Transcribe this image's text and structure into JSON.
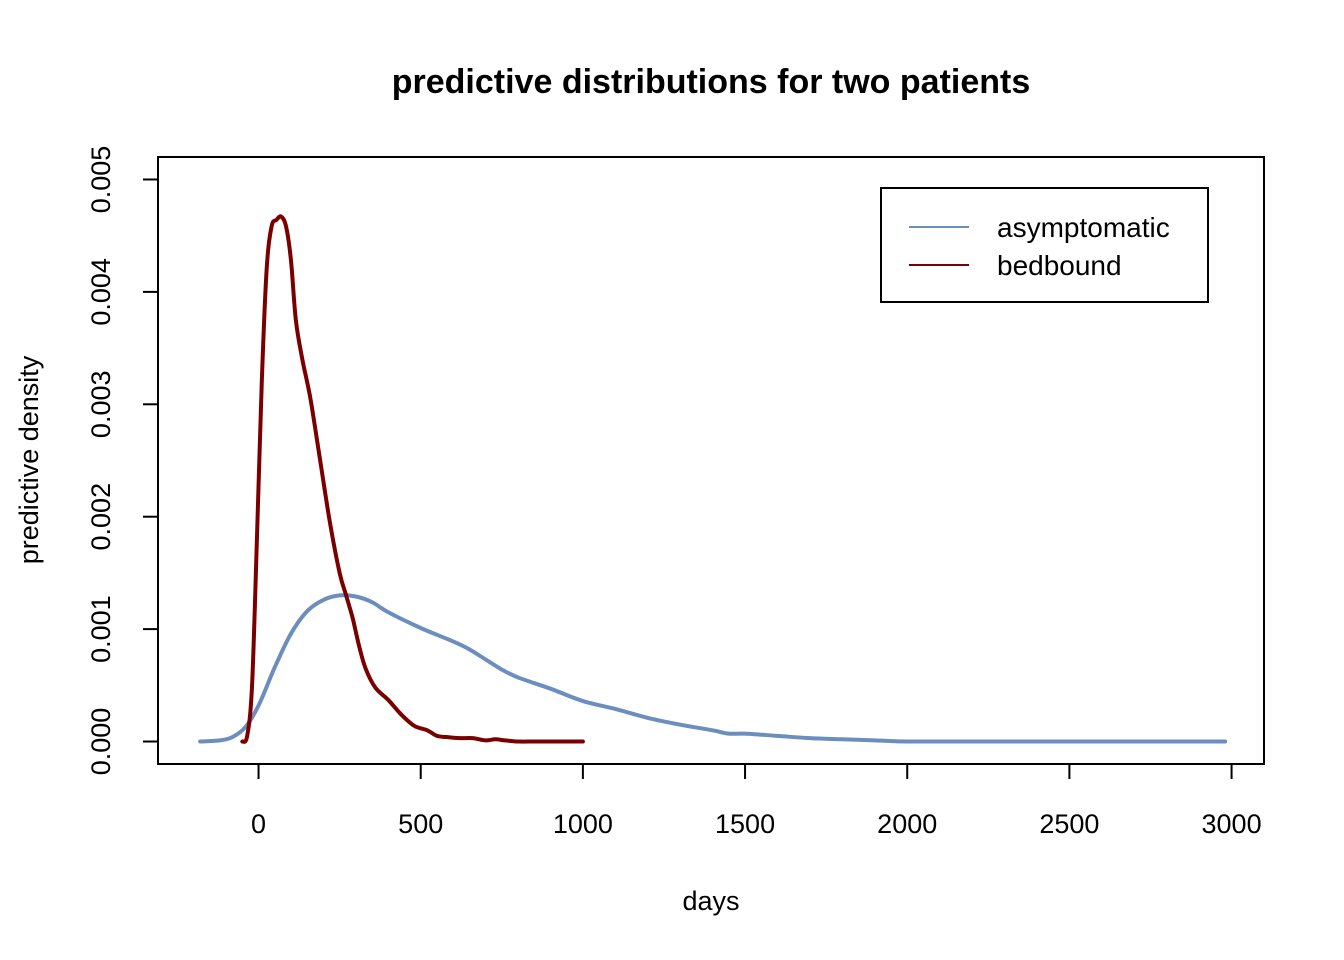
{
  "chart_data": {
    "type": "line",
    "title": "predictive distributions for two patients",
    "xlabel": "days",
    "ylabel": "predictive density",
    "xlim": [
      -310,
      3100
    ],
    "ylim": [
      -0.0002,
      0.0052
    ],
    "x_ticks": [
      0,
      500,
      1000,
      1500,
      2000,
      2500,
      3000
    ],
    "x_tick_labels": [
      "0",
      "500",
      "1000",
      "1500",
      "2000",
      "2500",
      "3000"
    ],
    "y_ticks": [
      0,
      0.001,
      0.002,
      0.003,
      0.004,
      0.005
    ],
    "y_tick_labels": [
      "0.000",
      "0.001",
      "0.002",
      "0.003",
      "0.004",
      "0.005"
    ],
    "grid": false,
    "legend_position": "top-right",
    "series": [
      {
        "name": "asymptomatic",
        "color": "#6C8EBF",
        "x": [
          -180,
          -120,
          -80,
          -40,
          0,
          50,
          100,
          150,
          200,
          250,
          300,
          350,
          400,
          500,
          600,
          650,
          700,
          750,
          800,
          900,
          1000,
          1100,
          1200,
          1300,
          1400,
          1450,
          1500,
          1600,
          1700,
          1800,
          1900,
          2000,
          2200,
          2400,
          2600,
          2800,
          2980
        ],
        "y": [
          0.0,
          1e-05,
          4e-05,
          0.00013,
          0.00032,
          0.00066,
          0.00096,
          0.00116,
          0.00126,
          0.0013,
          0.00129,
          0.00124,
          0.00115,
          0.00101,
          0.00089,
          0.00082,
          0.00073,
          0.00064,
          0.00057,
          0.00047,
          0.00036,
          0.00029,
          0.00021,
          0.00015,
          0.0001,
          7e-05,
          7e-05,
          5e-05,
          3e-05,
          2e-05,
          1e-05,
          0.0,
          0.0,
          0.0,
          0.0,
          0.0,
          0.0
        ]
      },
      {
        "name": "bedbound",
        "color": "#7A0000",
        "x": [
          -50,
          -35,
          -20,
          -5,
          10,
          25,
          40,
          55,
          70,
          85,
          100,
          115,
          135,
          160,
          190,
          220,
          250,
          270,
          290,
          310,
          330,
          360,
          400,
          440,
          480,
          520,
          550,
          580,
          620,
          660,
          700,
          730,
          760,
          800,
          850,
          900,
          950,
          1000
        ],
        "y": [
          0.0,
          5e-05,
          0.0005,
          0.0018,
          0.0032,
          0.0042,
          0.00458,
          0.00464,
          0.00467,
          0.00458,
          0.00428,
          0.00375,
          0.0034,
          0.00305,
          0.0025,
          0.00195,
          0.0015,
          0.0013,
          0.0011,
          0.00085,
          0.00065,
          0.00048,
          0.00037,
          0.00024,
          0.00014,
          0.0001,
          5e-05,
          4e-05,
          3e-05,
          3e-05,
          1e-05,
          2e-05,
          1e-05,
          0.0,
          0.0,
          0.0,
          0.0,
          0.0
        ]
      }
    ]
  }
}
